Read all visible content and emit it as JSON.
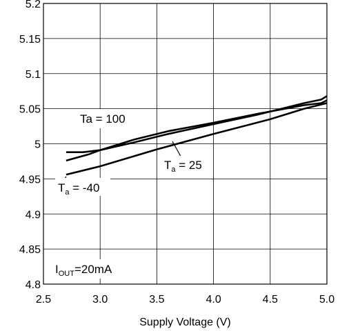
{
  "chart_data": {
    "type": "line",
    "title": "",
    "xlabel": "Supply Voltage (V)",
    "ylabel": "",
    "xlim": [
      2.5,
      5.0
    ],
    "ylim": [
      4.8,
      5.2
    ],
    "xticks": [
      "2.5",
      "3.0",
      "3.5",
      "4.0",
      "4.5",
      "5.0"
    ],
    "yticks": [
      "5.2",
      "5.15",
      "5.1",
      "5.05",
      "5",
      "4.95",
      "4.9",
      "4.85",
      "4.8"
    ],
    "grid": true,
    "series": [
      {
        "name": "Ta = 100",
        "x": [
          2.7,
          2.9,
          3.0,
          3.3,
          3.6,
          4.0,
          4.4,
          4.8,
          4.95,
          5.0
        ],
        "y": [
          4.976,
          4.985,
          4.991,
          5.006,
          5.018,
          5.03,
          5.043,
          5.055,
          5.058,
          5.062
        ]
      },
      {
        "name": "Ta = 25",
        "x": [
          2.7,
          2.85,
          3.0,
          3.3,
          3.6,
          4.0,
          4.4,
          4.8,
          4.95,
          5.0
        ],
        "y": [
          4.988,
          4.988,
          4.991,
          5.002,
          5.014,
          5.028,
          5.042,
          5.058,
          5.063,
          5.068
        ]
      },
      {
        "name": "Ta = -40",
        "x": [
          2.7,
          3.0,
          3.5,
          4.0,
          4.5,
          4.8,
          5.0
        ],
        "y": [
          4.956,
          4.968,
          4.992,
          5.014,
          5.035,
          5.05,
          5.058
        ]
      }
    ],
    "annotations": {
      "ta100": "Ta = 100",
      "ta25_prefix": "T",
      "ta25_sub": "a",
      "ta25_rest": " = 25",
      "ta40_prefix": "T",
      "ta40_sub": "a",
      "ta40_rest": " = -40",
      "iout_prefix": "I",
      "iout_sub": "OUT",
      "iout_rest": "=20mA"
    },
    "colors": {
      "line": "#000000",
      "grid": "#000000",
      "background": "#ffffff"
    }
  }
}
